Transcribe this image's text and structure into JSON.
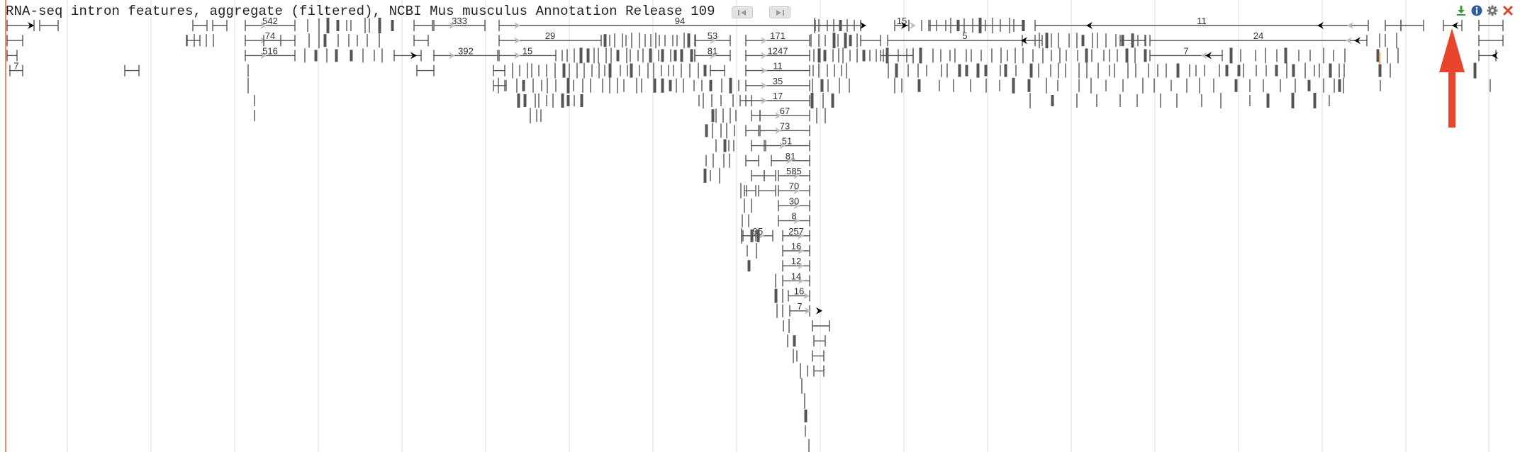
{
  "track": {
    "title": "RNA-seq intron features, aggregate (filtered), NCBI Mus musculus Annotation Release 109"
  },
  "icons": {
    "prev": "prev-icon",
    "next": "next-icon",
    "download": "download-icon",
    "info": "info-icon",
    "settings": "gear-icon",
    "close": "close-icon",
    "annotation": "red-arrow-icon"
  },
  "colors": {
    "feature": "#555555",
    "strand_arrow": "#bcbcbc",
    "grid": "#e6e6e6",
    "border": "#ef8c5e",
    "download": "#3c9a3c",
    "info": "#2d5c9c",
    "settings": "#777777",
    "close": "#d9452b",
    "annotation_arrow": "#e8452c",
    "highlight_tick": "#f0a050"
  },
  "intron_counts": [
    "542",
    "74",
    "516",
    "333",
    "392",
    "94",
    "29",
    "15",
    "53",
    "81",
    "171",
    "1247",
    "11",
    "35",
    "17",
    "67",
    "73",
    "51",
    "81",
    "585",
    "70",
    "30",
    "8",
    "95",
    "257",
    "16",
    "12",
    "14",
    "16",
    "7",
    "15",
    "11",
    "5",
    "24",
    "7",
    "7"
  ]
}
